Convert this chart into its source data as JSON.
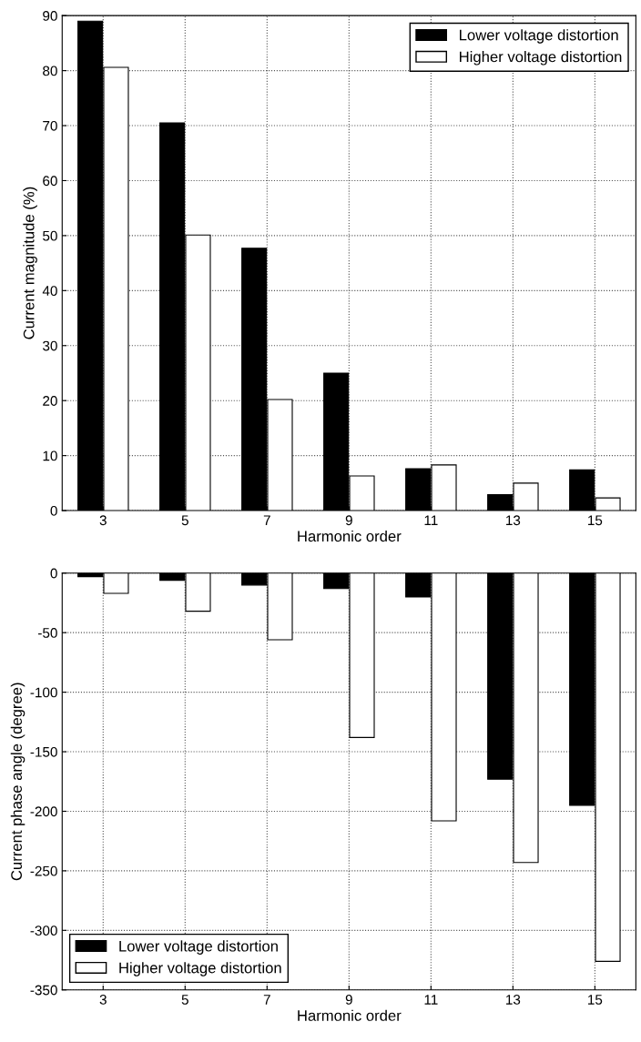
{
  "chart_data": [
    {
      "type": "bar",
      "xlabel": "Harmonic order",
      "ylabel": "Current magnitude (%)",
      "categories": [
        "3",
        "5",
        "7",
        "9",
        "11",
        "13",
        "15"
      ],
      "series": [
        {
          "name": "Lower voltage distortion",
          "color": "#000000",
          "values": [
            89,
            70.5,
            47.7,
            25,
            7.6,
            2.9,
            7.4
          ]
        },
        {
          "name": "Higher voltage distortion",
          "color": "#ffffff",
          "values": [
            80.6,
            50.1,
            20.2,
            6.3,
            8.3,
            5.0,
            2.3
          ]
        }
      ],
      "ylim": [
        0,
        90
      ],
      "yticks": [
        0,
        10,
        20,
        30,
        40,
        50,
        60,
        70,
        80,
        90
      ],
      "grid": true,
      "legend": "top right"
    },
    {
      "type": "bar",
      "xlabel": "Harmonic order",
      "ylabel": "Current phase angle (degree)",
      "categories": [
        "3",
        "5",
        "7",
        "9",
        "11",
        "13",
        "15"
      ],
      "series": [
        {
          "name": "Lower voltage distortion",
          "color": "#000000",
          "values": [
            -3,
            -6,
            -10,
            -13,
            -20,
            -173,
            -195
          ]
        },
        {
          "name": "Higher voltage distortion",
          "color": "#ffffff",
          "values": [
            -17,
            -32,
            -56,
            -138,
            -208,
            -243,
            -326
          ]
        }
      ],
      "ylim": [
        -350,
        0
      ],
      "yticks": [
        -350,
        -300,
        -250,
        -200,
        -150,
        -100,
        -50,
        0
      ],
      "grid": true,
      "legend": "bottom left"
    }
  ]
}
